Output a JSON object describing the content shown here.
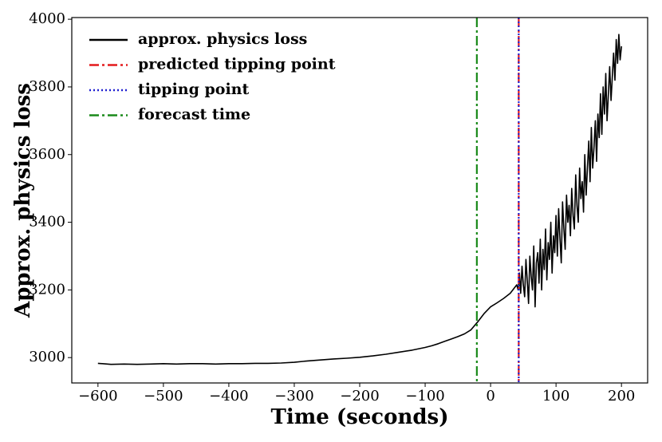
{
  "chart_data": {
    "type": "line",
    "xlabel": "Time (seconds)",
    "ylabel": "Approx. physics loss",
    "xlim": [
      -640,
      240
    ],
    "ylim": [
      2925,
      4005
    ],
    "xticks": [
      {
        "value": -600,
        "label": "−600"
      },
      {
        "value": -500,
        "label": "−500"
      },
      {
        "value": -400,
        "label": "−400"
      },
      {
        "value": -300,
        "label": "−300"
      },
      {
        "value": -200,
        "label": "−200"
      },
      {
        "value": -100,
        "label": "−100"
      },
      0,
      100,
      200
    ],
    "yticks": [
      3000,
      3200,
      3400,
      3600,
      3800,
      4000
    ],
    "legend": "upper left",
    "x": [
      -600,
      -580,
      -560,
      -540,
      -520,
      -500,
      -480,
      -460,
      -440,
      -420,
      -400,
      -380,
      -360,
      -340,
      -320,
      -300,
      -280,
      -260,
      -240,
      -220,
      -200,
      -180,
      -160,
      -140,
      -120,
      -100,
      -90,
      -80,
      -70,
      -60,
      -50,
      -40,
      -30,
      -20,
      -10,
      0,
      10,
      20,
      30,
      40,
      42,
      44,
      46,
      48,
      50,
      52,
      54,
      56,
      58,
      60,
      62,
      64,
      66,
      68,
      70,
      72,
      74,
      76,
      78,
      80,
      82,
      84,
      86,
      88,
      90,
      92,
      94,
      96,
      98,
      100,
      102,
      104,
      106,
      108,
      110,
      112,
      114,
      116,
      118,
      120,
      122,
      124,
      126,
      128,
      130,
      132,
      134,
      136,
      138,
      140,
      142,
      144,
      146,
      148,
      150,
      152,
      154,
      156,
      158,
      160,
      162,
      164,
      166,
      168,
      170,
      172,
      174,
      176,
      178,
      180,
      182,
      184,
      186,
      188,
      190,
      192,
      194,
      196,
      198,
      200
    ],
    "series": [
      {
        "name": "approx. physics loss",
        "color": "#000000",
        "values": [
          2983,
          2980,
          2981,
          2980,
          2981,
          2982,
          2981,
          2982,
          2982,
          2981,
          2982,
          2982,
          2983,
          2983,
          2984,
          2986,
          2990,
          2993,
          2996,
          2998,
          3001,
          3005,
          3010,
          3016,
          3022,
          3030,
          3035,
          3041,
          3048,
          3055,
          3062,
          3070,
          3082,
          3105,
          3130,
          3150,
          3162,
          3175,
          3190,
          3215,
          3200,
          3250,
          3190,
          3270,
          3215,
          3180,
          3290,
          3230,
          3160,
          3300,
          3240,
          3200,
          3330,
          3150,
          3280,
          3310,
          3220,
          3350,
          3200,
          3320,
          3260,
          3380,
          3230,
          3340,
          3290,
          3400,
          3250,
          3360,
          3310,
          3420,
          3300,
          3440,
          3350,
          3280,
          3460,
          3380,
          3320,
          3480,
          3400,
          3450,
          3360,
          3500,
          3420,
          3380,
          3540,
          3450,
          3400,
          3560,
          3470,
          3520,
          3430,
          3600,
          3480,
          3560,
          3640,
          3520,
          3680,
          3560,
          3620,
          3700,
          3580,
          3720,
          3650,
          3780,
          3660,
          3800,
          3720,
          3840,
          3700,
          3780,
          3860,
          3760,
          3830,
          3900,
          3820,
          3940,
          3870,
          3955,
          3880,
          3920
        ]
      }
    ],
    "vlines": [
      {
        "name": "predicted tipping point",
        "color": "#e41a1c",
        "x": 43,
        "style": "dashdot"
      },
      {
        "name": "tipping point",
        "color": "#1f1fd0",
        "x": 43,
        "style": "dotted"
      },
      {
        "name": "forecast time",
        "color": "#1a8a1a",
        "x": -21,
        "style": "dashdot"
      }
    ]
  }
}
